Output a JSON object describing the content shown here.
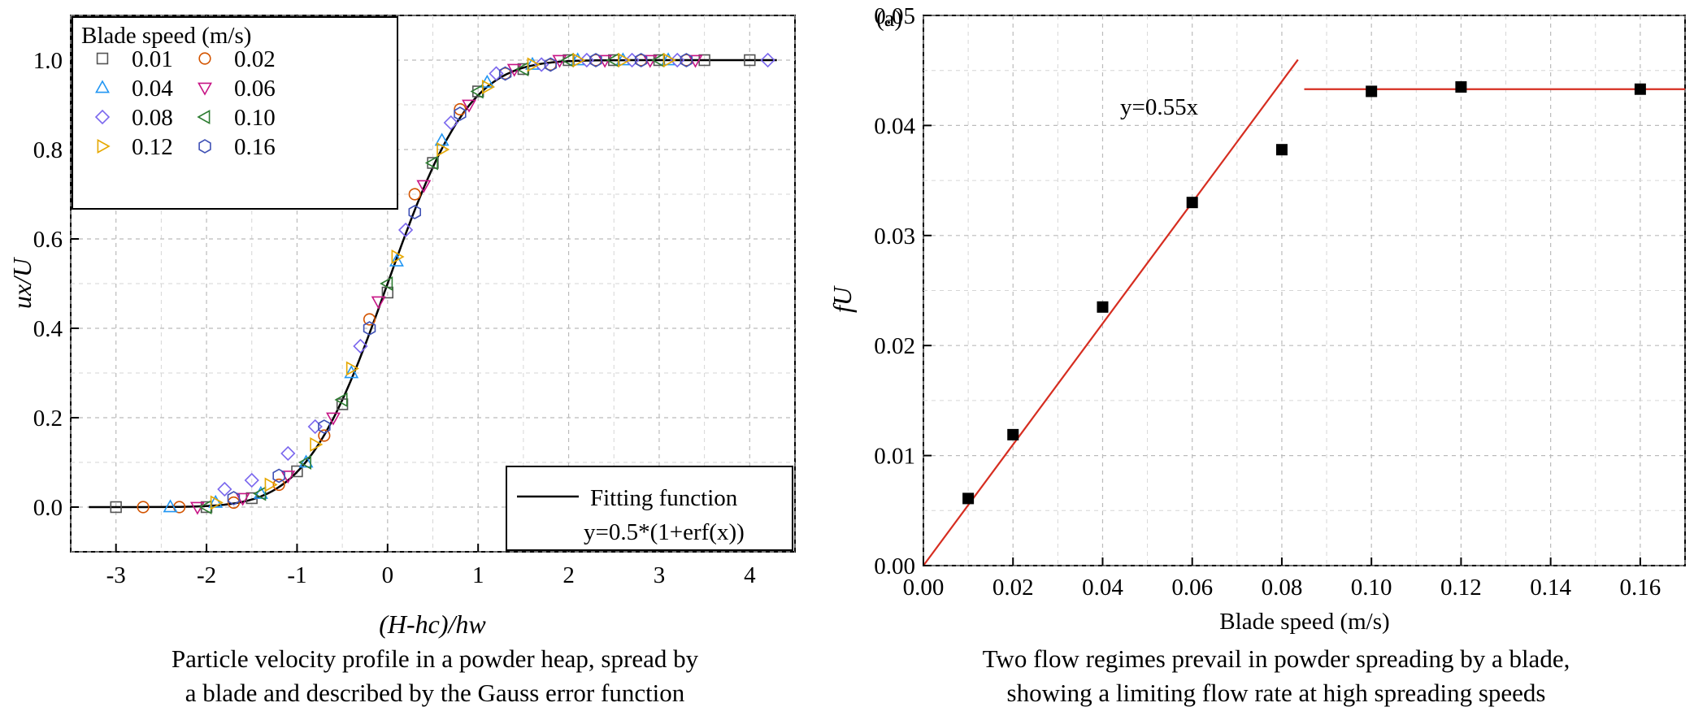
{
  "chart_data": [
    {
      "type": "scatter",
      "panel_label": "",
      "xlabel": "(H-hc)/hw",
      "ylabel": "ux/U",
      "xlim": [
        -3.5,
        4.5
      ],
      "ylim": [
        -0.1,
        1.1
      ],
      "xticks": [
        "-3",
        "-2",
        "-1",
        "0",
        "1",
        "2",
        "3",
        "4"
      ],
      "yticks": [
        "0.0",
        "0.2",
        "0.4",
        "0.6",
        "0.8",
        "1.0"
      ],
      "grid": true,
      "legend": {
        "title": "Blade speed (m/s)",
        "placement": "top-left",
        "entries": [
          "0.01",
          "0.02",
          "0.04",
          "0.06",
          "0.08",
          "0.10",
          "0.12",
          "0.16"
        ]
      },
      "series": [
        {
          "name": "0.01",
          "marker": "square",
          "color": "#555555",
          "x": [
            -3.0,
            -2.0,
            -1.5,
            -1.0,
            -0.5,
            0.0,
            0.5,
            1.0,
            1.5,
            2.0,
            2.5,
            3.0,
            3.5,
            4.0
          ],
          "y": [
            0.0,
            0.0,
            0.02,
            0.08,
            0.23,
            0.48,
            0.77,
            0.93,
            0.98,
            1.0,
            1.0,
            1.0,
            1.0,
            1.0
          ]
        },
        {
          "name": "0.02",
          "marker": "circle",
          "color": "#d35400",
          "x": [
            -2.7,
            -2.3,
            -1.7,
            -1.2,
            -0.7,
            -0.2,
            0.3,
            0.8,
            1.3,
            1.8,
            2.3,
            2.8,
            3.3
          ],
          "y": [
            0.0,
            0.0,
            0.01,
            0.05,
            0.16,
            0.42,
            0.7,
            0.89,
            0.97,
            0.99,
            1.0,
            1.0,
            1.0
          ]
        },
        {
          "name": "0.04",
          "marker": "triangle-up",
          "color": "#2196f3",
          "x": [
            -2.4,
            -1.9,
            -1.4,
            -0.9,
            -0.4,
            0.1,
            0.6,
            1.1,
            1.6,
            2.1,
            2.6,
            3.1
          ],
          "y": [
            0.0,
            0.01,
            0.03,
            0.1,
            0.3,
            0.55,
            0.82,
            0.95,
            0.99,
            1.0,
            1.0,
            1.0
          ]
        },
        {
          "name": "0.06",
          "marker": "triangle-down",
          "color": "#c71585",
          "x": [
            -2.1,
            -1.6,
            -1.1,
            -0.6,
            -0.1,
            0.4,
            0.9,
            1.4,
            1.9,
            2.4,
            2.9,
            3.4
          ],
          "y": [
            0.0,
            0.02,
            0.07,
            0.2,
            0.46,
            0.72,
            0.9,
            0.98,
            1.0,
            1.0,
            1.0,
            1.0
          ]
        },
        {
          "name": "0.08",
          "marker": "diamond",
          "color": "#7b68ee",
          "x": [
            -1.8,
            -1.5,
            -1.1,
            -0.8,
            -0.3,
            0.2,
            0.7,
            1.2,
            1.7,
            2.2,
            2.7,
            3.2,
            4.2
          ],
          "y": [
            0.04,
            0.06,
            0.12,
            0.18,
            0.36,
            0.62,
            0.86,
            0.97,
            0.99,
            1.0,
            1.0,
            1.0,
            1.0
          ]
        },
        {
          "name": "0.10",
          "marker": "triangle-left",
          "color": "#2e7d32",
          "x": [
            -2.0,
            -1.4,
            -0.9,
            -0.5,
            0.0,
            0.5,
            1.0,
            1.5,
            2.0,
            2.5,
            3.0
          ],
          "y": [
            0.0,
            0.03,
            0.1,
            0.24,
            0.5,
            0.77,
            0.93,
            0.98,
            1.0,
            1.0,
            1.0
          ]
        },
        {
          "name": "0.12",
          "marker": "triangle-right",
          "color": "#e6a800",
          "x": [
            -1.9,
            -1.3,
            -0.8,
            -0.4,
            0.1,
            0.6,
            1.1,
            1.6,
            2.1,
            2.6,
            3.1
          ],
          "y": [
            0.01,
            0.05,
            0.14,
            0.31,
            0.56,
            0.8,
            0.94,
            0.99,
            1.0,
            1.0,
            1.0
          ]
        },
        {
          "name": "0.16",
          "marker": "hexagon",
          "color": "#3f51b5",
          "x": [
            -1.7,
            -1.2,
            -0.7,
            -0.2,
            0.3,
            0.8,
            1.3,
            1.8,
            2.3,
            2.8,
            3.3
          ],
          "y": [
            0.02,
            0.07,
            0.18,
            0.4,
            0.66,
            0.88,
            0.97,
            0.99,
            1.0,
            1.0,
            1.0
          ]
        }
      ],
      "fit": {
        "label": "Fitting function",
        "equation": "y=0.5*(1+erf(x))",
        "placement": "bottom-right",
        "x_range": [
          -3.3,
          4.3
        ]
      },
      "caption": [
        "Particle velocity profile in a powder heap, spread by",
        "a blade and described by the Gauss error function"
      ]
    },
    {
      "type": "scatter",
      "panel_label": "(a)",
      "xlabel": "Blade speed (m/s)",
      "ylabel": "fU",
      "xlim": [
        0.0,
        0.17
      ],
      "ylim": [
        0.0,
        0.05
      ],
      "xticks": [
        "0.00",
        "0.02",
        "0.04",
        "0.06",
        "0.08",
        "0.10",
        "0.12",
        "0.14",
        "0.16"
      ],
      "yticks": [
        "0.00",
        "0.01",
        "0.02",
        "0.03",
        "0.04",
        "0.05"
      ],
      "grid": true,
      "series": [
        {
          "name": "",
          "marker": "filled-square",
          "color": "#000000",
          "x": [
            0.01,
            0.02,
            0.04,
            0.06,
            0.08,
            0.1,
            0.12,
            0.16
          ],
          "y": [
            0.0061,
            0.0119,
            0.0235,
            0.033,
            0.0378,
            0.0431,
            0.0435,
            0.0433
          ]
        }
      ],
      "lines": [
        {
          "label": "y=0.55x",
          "slope": 0.55,
          "x_range": [
            0.0,
            0.0836
          ],
          "color": "#d62d20"
        },
        {
          "label": "",
          "value": 0.0433,
          "x_range": [
            0.085,
            0.17
          ],
          "color": "#d62d20"
        }
      ],
      "caption": [
        "Two flow regimes prevail in powder spreading by a blade,",
        "showing a limiting flow rate at high spreading speeds"
      ]
    }
  ]
}
